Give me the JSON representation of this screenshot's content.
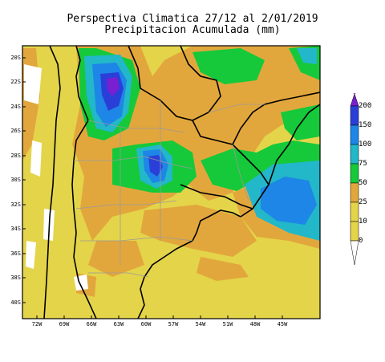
{
  "title": {
    "line1": "Perspectiva Climatica 27/12 al 2/01/2019",
    "line2": "Precipitacion Acumulada (mm)"
  },
  "lat_labels": [
    "20S",
    "22S",
    "24S",
    "26S",
    "28S",
    "30S",
    "32S",
    "34S",
    "36S",
    "38S",
    "40S"
  ],
  "lon_labels": [
    "72W",
    "69W",
    "66W",
    "63W",
    "60W",
    "57W",
    "54W",
    "51W",
    "48W",
    "45W"
  ],
  "legend": {
    "levels": [
      "200",
      "150",
      "100",
      "75",
      "50",
      "25",
      "10",
      "0"
    ],
    "colors": [
      "#7a1fd1",
      "#2a3fd8",
      "#1e86e6",
      "#22b7c9",
      "#15c93a",
      "#e2a73c",
      "#e4d44a",
      "#ffffff"
    ]
  }
}
